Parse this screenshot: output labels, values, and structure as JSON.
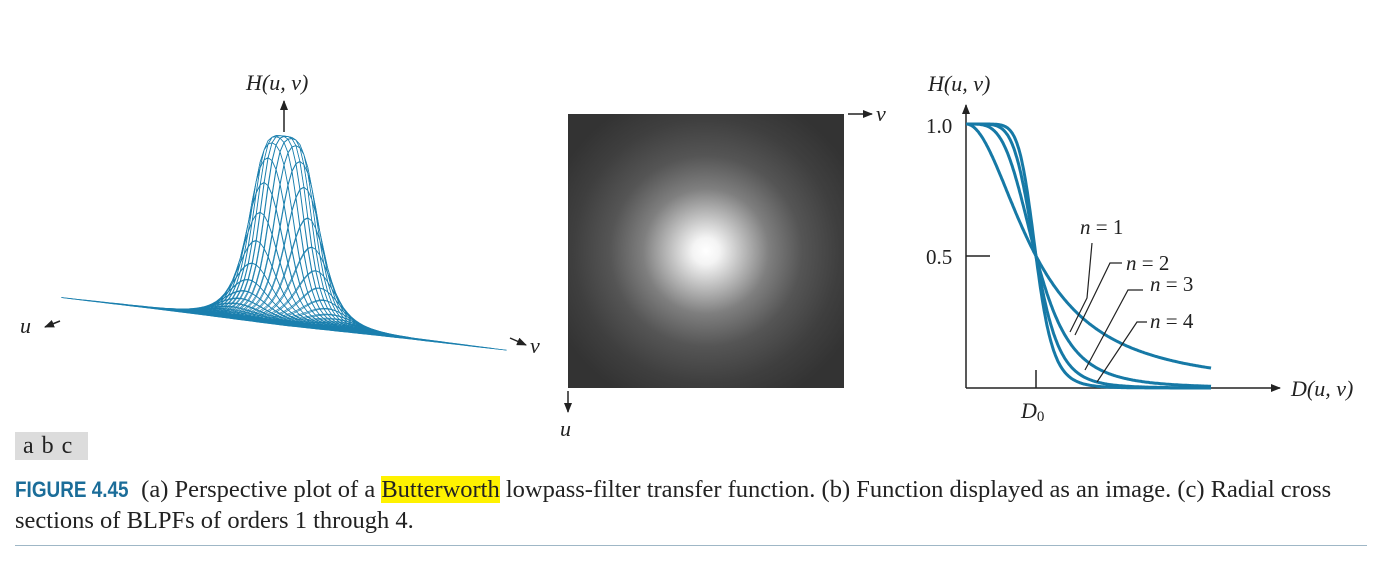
{
  "panel_a": {
    "z_label": "H(u, v)",
    "u_label": "u",
    "v_label": "v"
  },
  "panel_b": {
    "v_label": "v",
    "u_label": "u"
  },
  "panel_c": {
    "y_axis_label": "H(u, v)",
    "x_axis_label": "D(u, v)",
    "x_tick_label": "D0",
    "y_tick_1": "1.0",
    "y_tick_05": "0.5",
    "n_labels": [
      "n = 1",
      "n = 2",
      "n = 3",
      "n = 4"
    ]
  },
  "chart_data": {
    "type": "line",
    "x_label": "D(u, v)",
    "y_label": "H(u, v)",
    "y_ticks": [
      "0.5",
      "1.0"
    ],
    "x_ticks": [
      "D0"
    ],
    "series": [
      {
        "name": "n = 1",
        "order": 1
      },
      {
        "name": "n = 2",
        "order": 2
      },
      {
        "name": "n = 3",
        "order": 3
      },
      {
        "name": "n = 4",
        "order": 4
      }
    ],
    "x_range_over_D0": [
      0,
      3.5
    ],
    "ylim": [
      0,
      1.0
    ]
  },
  "panel_tags": [
    "a",
    "b",
    "c"
  ],
  "caption": {
    "figure_label": "FIGURE 4.45",
    "part1": " (a) Perspective plot of a ",
    "highlight": "Butterworth",
    "part2": " lowpass-filter transfer function. (b) Function displayed as an image. (c) Radial cross sections of BLPFs of orders 1 through 4."
  },
  "colors": {
    "curve": "#1679a6",
    "mesh": "#1a7fae",
    "caption_label": "#1b6d99",
    "highlight": "#fff200"
  }
}
